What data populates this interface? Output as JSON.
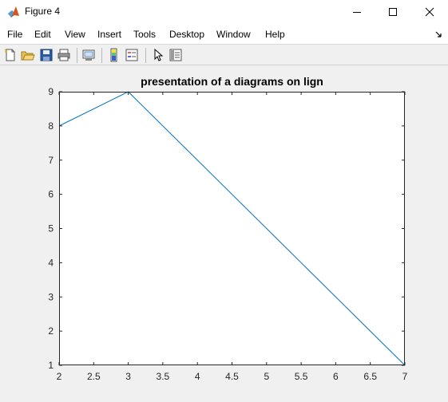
{
  "window": {
    "title": "Figure 4",
    "icon": "matlab-icon"
  },
  "window_controls": [
    "minimize-icon",
    "maximize-icon",
    "close-icon"
  ],
  "menu": {
    "items": [
      "File",
      "Edit",
      "View",
      "Insert",
      "Tools",
      "Desktop",
      "Window",
      "Help"
    ]
  },
  "toolbar": {
    "buttons": [
      "new-figure-icon",
      "open-file-icon",
      "save-icon",
      "print-icon",
      "link-plot-icon",
      "insert-colorbar-icon",
      "insert-legend-icon",
      "edit-plot-icon",
      "property-inspector-icon"
    ]
  },
  "colors": {
    "line": "#0072bd",
    "axes_bg": "#ffffff",
    "figure_bg": "#f0f0f0"
  },
  "chart_data": {
    "type": "line",
    "title": "presentation of a diagrams on lign",
    "xlabel": "",
    "ylabel": "",
    "xlim": [
      2,
      7
    ],
    "ylim": [
      1,
      9
    ],
    "xticks": [
      "2",
      "2.5",
      "3",
      "3.5",
      "4",
      "4.5",
      "5",
      "5.5",
      "6",
      "6.5",
      "7"
    ],
    "yticks": [
      "1",
      "2",
      "3",
      "4",
      "5",
      "6",
      "7",
      "8",
      "9"
    ],
    "grid": false,
    "legend": "none",
    "series": [
      {
        "x": [
          2,
          3,
          7
        ],
        "y": [
          8,
          9,
          1
        ]
      }
    ]
  }
}
